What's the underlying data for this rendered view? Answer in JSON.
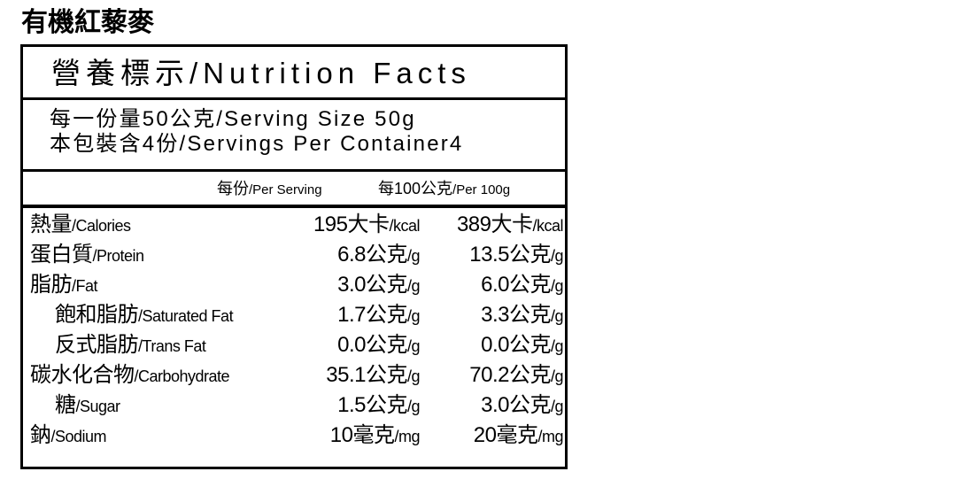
{
  "product_title": "有機紅藜麥",
  "header": "營養標示/Nutrition Facts",
  "serving": {
    "size": "每一份量50公克/Serving Size 50g",
    "per_container": "本包裝含4份/Servings Per Container4"
  },
  "columns": {
    "per_serving_zh": "每份",
    "per_serving_en": "/Per Serving",
    "per_100g_zh": "每100公克",
    "per_100g_en": "/Per 100g"
  },
  "rows": [
    {
      "zh": "熱量",
      "en": "/Calories",
      "v1": "195大卡",
      "u1": "/kcal",
      "v2": "389大卡",
      "u2": "/kcal",
      "indent": false
    },
    {
      "zh": "蛋白質",
      "en": "/Protein",
      "v1": "6.8公克",
      "u1": "/g",
      "v2": "13.5公克",
      "u2": "/g",
      "indent": false
    },
    {
      "zh": "脂肪",
      "en": "/Fat",
      "v1": "3.0公克",
      "u1": "/g",
      "v2": "6.0公克",
      "u2": "/g",
      "indent": false
    },
    {
      "zh": "飽和脂肪",
      "en": "/Saturated Fat",
      "v1": "1.7公克",
      "u1": "/g",
      "v2": "3.3公克",
      "u2": "/g",
      "indent": true
    },
    {
      "zh": "反式脂肪",
      "en": "/Trans Fat",
      "v1": "0.0公克",
      "u1": "/g",
      "v2": "0.0公克",
      "u2": "/g",
      "indent": true
    },
    {
      "zh": "碳水化合物",
      "en": "/Carbohydrate",
      "v1": "35.1公克",
      "u1": "/g",
      "v2": "70.2公克",
      "u2": "/g",
      "indent": false
    },
    {
      "zh": "糖",
      "en": "/Sugar",
      "v1": "1.5公克",
      "u1": "/g",
      "v2": "3.0公克",
      "u2": "/g",
      "indent": true
    },
    {
      "zh": "鈉",
      "en": "/Sodium",
      "v1": "10毫克",
      "u1": "/mg",
      "v2": "20毫克",
      "u2": "/mg",
      "indent": false
    }
  ]
}
